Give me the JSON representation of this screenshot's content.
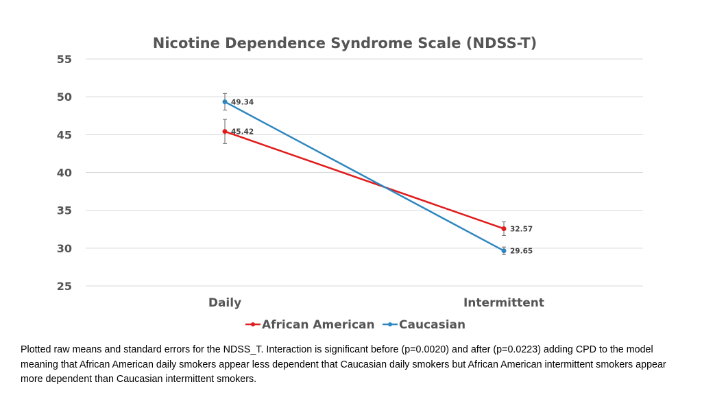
{
  "chart_data": {
    "type": "line",
    "title": "Nicotine Dependence Syndrome Scale (NDSS-T)",
    "categories": [
      "Daily",
      "Intermittent"
    ],
    "ylim": [
      25,
      55
    ],
    "yticks": [
      "55",
      "50",
      "45",
      "40",
      "35",
      "30",
      "25"
    ],
    "series": [
      {
        "name": "African American",
        "color": "#e11b1b",
        "values": [
          45.42,
          32.57
        ],
        "labels": [
          "45.42",
          "32.57"
        ],
        "errors": [
          1.6,
          0.9
        ]
      },
      {
        "name": "Caucasian",
        "color": "#2f86bf",
        "values": [
          49.34,
          29.65
        ],
        "labels": [
          "49.34",
          "29.65"
        ],
        "errors": [
          1.1,
          0.5
        ]
      }
    ],
    "grid": true,
    "legend": "bottom"
  },
  "caption": "Plotted raw means and standard errors for the NDSS_T. Interaction is significant before (p=0.0020) and after (p=0.0223) adding CPD to the model meaning that African American daily smokers appear less dependent that Caucasian daily smokers but African American intermittent smokers appear more dependent than Caucasian intermittent smokers."
}
